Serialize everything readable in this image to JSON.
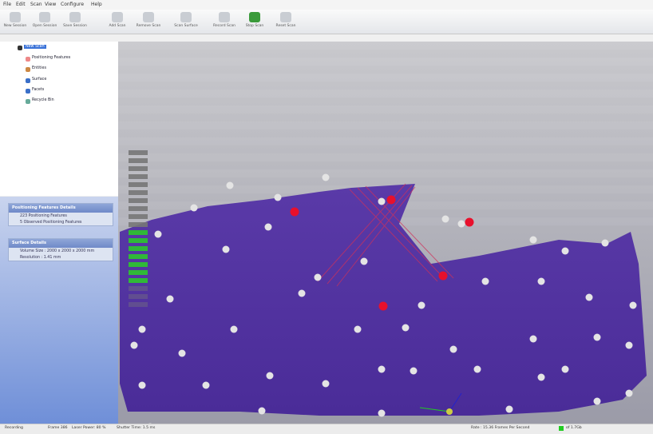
{
  "menu": [
    "File",
    "Edit",
    "Scan",
    "View",
    "Configure",
    "Help"
  ],
  "toolbar": [
    "New Session",
    "Open Session",
    "Save Session",
    "Add Scan",
    "Remove Scan",
    "Scan Surface",
    "Record Scan",
    "Stop Scan",
    "Reset Scan"
  ],
  "tree": {
    "root": "New Scan",
    "items": [
      "Positioning Features",
      "Entities",
      "Surface",
      "Facets",
      "Recycle Bin"
    ]
  },
  "positioning_panel": {
    "title": "Positioning Features Details",
    "lines": [
      "223 Positioning Features",
      "5 Observed Positioning Features"
    ]
  },
  "surface_panel": {
    "title": "Surface Details",
    "lines": [
      "Volume Size : 2000 x 2000 x 2000 mm",
      "Resolution : 1.41 mm"
    ]
  },
  "status": {
    "mode": "Recording",
    "frame": "Frame 386",
    "laser": "Laser Power: 80 %",
    "shutter": "Shutter Time: 1.5 ms",
    "rate": "Rate : 15.36 Frames Per Second",
    "memory": "of 1.7Gb"
  }
}
